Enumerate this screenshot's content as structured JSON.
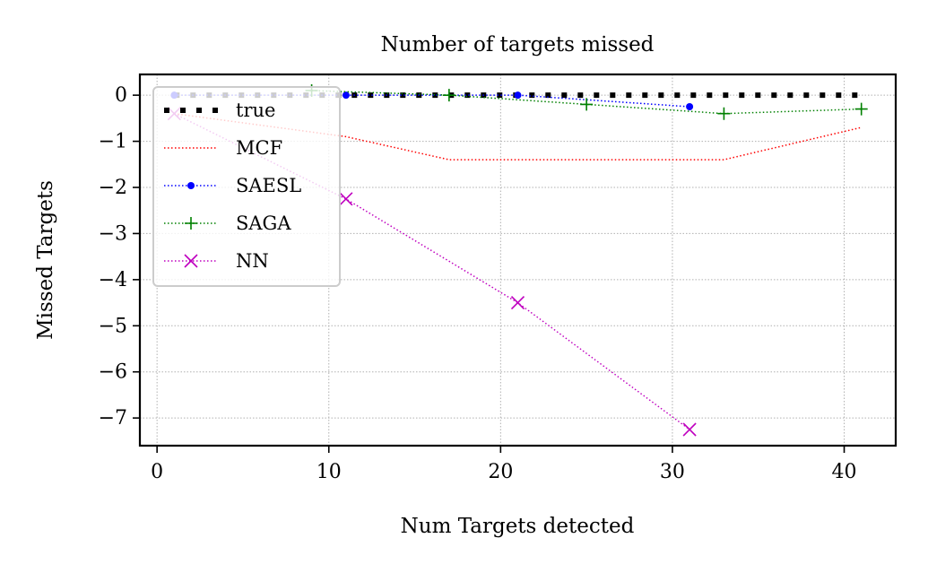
{
  "chart_data": {
    "type": "line",
    "title": "Number of targets missed",
    "xlabel": "Num Targets detected",
    "ylabel": "Missed Targets",
    "xlim": [
      -1,
      43
    ],
    "ylim": [
      -7.6,
      0.45
    ],
    "xticks": [
      0,
      10,
      20,
      30,
      40
    ],
    "yticks": [
      0,
      -1,
      -2,
      -3,
      -4,
      -5,
      -6,
      -7
    ],
    "grid": true,
    "legend_position": "top-left",
    "series": [
      {
        "name": "true",
        "color": "#000000",
        "style": "dotted-thick",
        "marker": "none",
        "x": [
          1,
          41
        ],
        "y": [
          0,
          0
        ]
      },
      {
        "name": "MCF",
        "color": "#ff0000",
        "style": "dotted",
        "marker": "none",
        "x": [
          1,
          11,
          17,
          33,
          41
        ],
        "y": [
          -0.4,
          -0.9,
          -1.4,
          -1.4,
          -0.7
        ]
      },
      {
        "name": "SAESL",
        "color": "#0000ff",
        "style": "dotted",
        "marker": "dot",
        "x": [
          1,
          11,
          21,
          31
        ],
        "y": [
          0,
          0,
          0,
          -0.25
        ]
      },
      {
        "name": "SAGA",
        "color": "#008000",
        "style": "dotted",
        "marker": "plus",
        "x": [
          9,
          17,
          25,
          33,
          41
        ],
        "y": [
          0.1,
          0,
          -0.2,
          -0.4,
          -0.3
        ]
      },
      {
        "name": "NN",
        "color": "#bf00bf",
        "style": "dotted",
        "marker": "x",
        "x": [
          1,
          11,
          21,
          31
        ],
        "y": [
          -0.4,
          -2.25,
          -4.5,
          -7.25
        ]
      }
    ]
  }
}
